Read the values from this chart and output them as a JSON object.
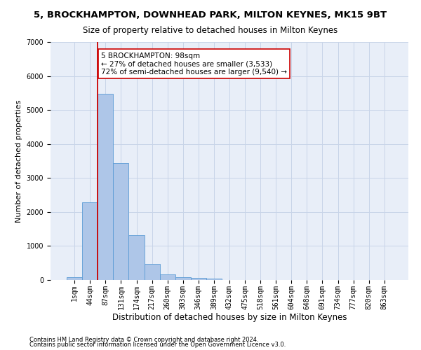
{
  "title": "5, BROCKHAMPTON, DOWNHEAD PARK, MILTON KEYNES, MK15 9BT",
  "subtitle": "Size of property relative to detached houses in Milton Keynes",
  "xlabel": "Distribution of detached houses by size in Milton Keynes",
  "ylabel": "Number of detached properties",
  "footnote1": "Contains HM Land Registry data © Crown copyright and database right 2024.",
  "footnote2": "Contains public sector information licensed under the Open Government Licence v3.0.",
  "annotation_line1": "5 BROCKHAMPTON: 98sqm",
  "annotation_line2": "← 27% of detached houses are smaller (3,533)",
  "annotation_line3": "72% of semi-detached houses are larger (9,540) →",
  "bar_color": "#aec6e8",
  "bar_edge_color": "#5b9bd5",
  "vline_color": "#cc0000",
  "vline_x": 2.0,
  "categories": [
    "1sqm",
    "44sqm",
    "87sqm",
    "131sqm",
    "174sqm",
    "217sqm",
    "260sqm",
    "303sqm",
    "346sqm",
    "389sqm",
    "432sqm",
    "475sqm",
    "518sqm",
    "561sqm",
    "604sqm",
    "648sqm",
    "691sqm",
    "734sqm",
    "777sqm",
    "820sqm",
    "863sqm"
  ],
  "values": [
    80,
    2280,
    5480,
    3440,
    1310,
    470,
    155,
    90,
    60,
    40,
    0,
    0,
    0,
    0,
    0,
    0,
    0,
    0,
    0,
    0,
    0
  ],
  "ylim": [
    0,
    7000
  ],
  "yticks": [
    0,
    1000,
    2000,
    3000,
    4000,
    5000,
    6000,
    7000
  ],
  "grid_color": "#c8d4e8",
  "bg_color": "#e8eef8",
  "title_fontsize": 9.5,
  "subtitle_fontsize": 8.5,
  "xlabel_fontsize": 8.5,
  "ylabel_fontsize": 8,
  "tick_fontsize": 7,
  "footnote_fontsize": 6,
  "annotation_fontsize": 7.5
}
